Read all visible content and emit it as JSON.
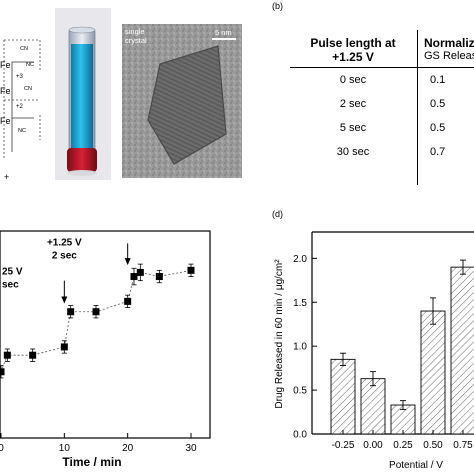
{
  "panel_labels": {
    "b": "(b)",
    "d": "(d)"
  },
  "structure": {
    "fe_labels": [
      "Fe",
      "Fe",
      "Fe"
    ],
    "charges": [
      "+3",
      "+2"
    ],
    "ligands": [
      "CN",
      "NC",
      "CN",
      "NC"
    ],
    "plus": "+"
  },
  "tem": {
    "label_line1": "single",
    "label_line2": "crystal",
    "scale_bar": "5 nm"
  },
  "table": {
    "col1_header_line1": "Pulse length at",
    "col1_header_line2": "+1.25 V",
    "col2_header_line1": "Normaliz",
    "col2_header_line2": "GS Releas",
    "rows": [
      {
        "pulse": "0 sec",
        "release": "0.1"
      },
      {
        "pulse": "2 sec",
        "release": "0.5"
      },
      {
        "pulse": "5 sec",
        "release": "0.5"
      },
      {
        "pulse": "30 sec",
        "release": "0.7"
      }
    ]
  },
  "colors": {
    "vial_liquid": "#1fa7d6",
    "vial_cap": "#c0182a",
    "bar_fill": "#ffffff",
    "axis": "#000000"
  },
  "chart_data": [
    {
      "type": "scatter",
      "title": "",
      "xlabel": "Time / min",
      "ylabel": "",
      "xlim": [
        0,
        33
      ],
      "ylim": [
        0,
        10
      ],
      "xticks": [
        0,
        10,
        20,
        30
      ],
      "series": [
        {
          "x": [
            0,
            1,
            5,
            10,
            11,
            15,
            20,
            21,
            22,
            25,
            30
          ],
          "y": [
            3.2,
            4.0,
            4.0,
            4.4,
            6.1,
            6.1,
            6.6,
            7.8,
            8.0,
            7.8,
            8.1
          ],
          "err": [
            0.3,
            0.3,
            0.3,
            0.3,
            0.3,
            0.3,
            0.3,
            0.4,
            0.4,
            0.3,
            0.3
          ]
        }
      ],
      "annotations": [
        {
          "line1": "+1.25 V",
          "line2": "2 sec",
          "x": 10
        },
        {
          "line1": "+1.25 V",
          "line2": "2 sec",
          "x": 20
        },
        {
          "line1": "25 V",
          "line2": "sec",
          "x": 0
        }
      ]
    },
    {
      "type": "bar",
      "title": "",
      "xlabel": "Potential / V",
      "ylabel": "Drug Released in 60 min / μg/cm²",
      "categories": [
        "-0.25",
        "0.00",
        "0.25",
        "0.50",
        "0.75"
      ],
      "values": [
        0.85,
        0.63,
        0.33,
        1.4,
        1.9
      ],
      "errors": [
        0.07,
        0.08,
        0.05,
        0.15,
        0.08
      ],
      "ylim": [
        0,
        2.3
      ],
      "yticks": [
        0.0,
        0.5,
        1.0,
        1.5,
        2.0
      ],
      "ytick_labels": [
        "0.0",
        "0.5",
        "1.0",
        "1.5",
        "2.0"
      ]
    }
  ]
}
